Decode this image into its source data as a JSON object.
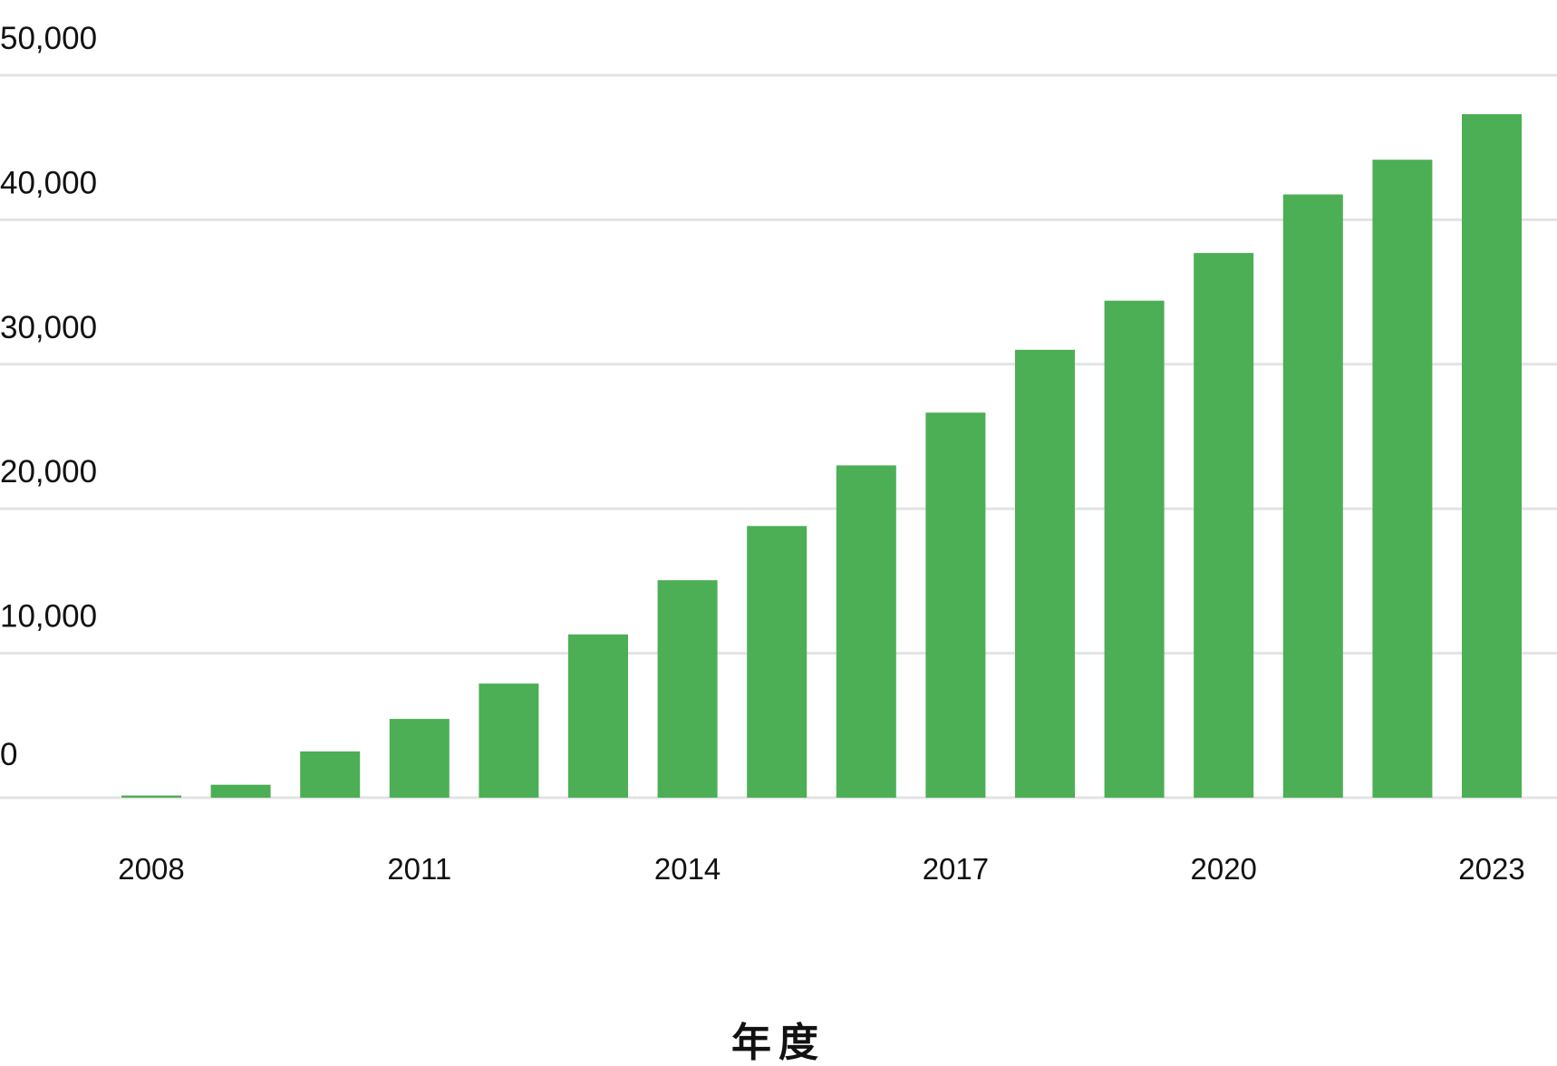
{
  "chart_data": {
    "type": "bar",
    "categories": [
      "2008",
      "2009",
      "2010",
      "2011",
      "2012",
      "2013",
      "2014",
      "2015",
      "2016",
      "2017",
      "2018",
      "2019",
      "2020",
      "2021",
      "2022",
      "2023"
    ],
    "series": [
      {
        "values": [
          150,
          900,
          3200,
          5450,
          7900,
          11300,
          15050,
          18800,
          23000,
          26650,
          31000,
          34400,
          37700,
          41750,
          44150,
          47300
        ],
        "color": "#4caf55"
      }
    ],
    "xtick_labels": [
      "2008",
      "2011",
      "2014",
      "2017",
      "2020",
      "2023"
    ],
    "yticks": [
      0,
      10000,
      20000,
      30000,
      40000,
      50000
    ],
    "ytick_labels": [
      "0",
      "10,000",
      "20,000",
      "30,000",
      "40,000",
      "50,000"
    ],
    "ylim": [
      0,
      50000
    ],
    "xlabel": "年度",
    "ylabel": "",
    "title": "",
    "grid": true,
    "grid_color": "#e3e3e3",
    "bar_color": "#4caf55",
    "legend": "none"
  }
}
